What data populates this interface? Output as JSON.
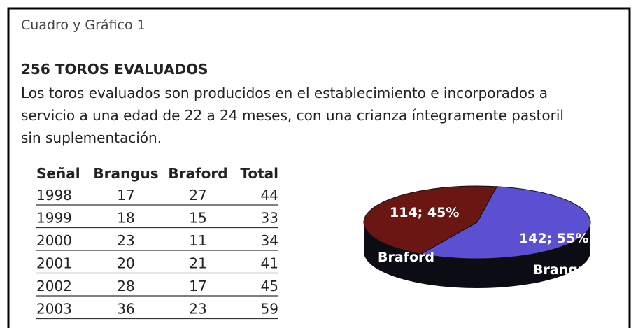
{
  "caption": "Cuadro  y Gráfico 1",
  "title": "256 TOROS EVALUADOS",
  "text": [
    "Los toros evaluados son producidos en el establecimiento e incorporados a",
    "servicio a una edad de 22 a 24 meses, con una crianza íntegramente pastoril",
    "sin suplementación."
  ],
  "table": {
    "headers": [
      "Señal",
      "Brangus",
      "Braford",
      "Total"
    ],
    "rows": [
      [
        1998,
        17,
        27,
        44
      ],
      [
        1999,
        18,
        15,
        33
      ],
      [
        2000,
        23,
        11,
        34
      ],
      [
        2001,
        20,
        21,
        41
      ],
      [
        2002,
        28,
        17,
        45
      ],
      [
        2003,
        36,
        23,
        59
      ]
    ]
  },
  "chart_data": {
    "type": "pie",
    "categories": [
      "Brangus",
      "Braford"
    ],
    "values": [
      142,
      114
    ],
    "value_labels": [
      "142; 55%",
      "114; 45%"
    ],
    "colors": [
      "#5b50d2",
      "#6a1612"
    ]
  }
}
